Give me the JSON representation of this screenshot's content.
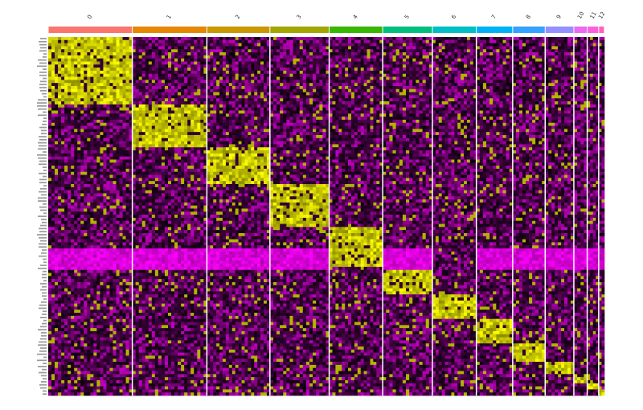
{
  "chart_data": {
    "type": "heatmap",
    "title": "",
    "xlabel": "",
    "ylabel": "",
    "clusters": [
      {
        "label": "0",
        "color": "#F8766D",
        "cells": 88
      },
      {
        "label": "1",
        "color": "#E58700",
        "cells": 78
      },
      {
        "label": "2",
        "color": "#C99800",
        "cells": 66
      },
      {
        "label": "3",
        "color": "#A3A500",
        "cells": 62
      },
      {
        "label": "4",
        "color": "#39B600",
        "cells": 56
      },
      {
        "label": "5",
        "color": "#00BF7D",
        "cells": 52
      },
      {
        "label": "6",
        "color": "#00BFC4",
        "cells": 46
      },
      {
        "label": "7",
        "color": "#00B0F6",
        "cells": 38
      },
      {
        "label": "8",
        "color": "#35A2FF",
        "cells": 34
      },
      {
        "label": "9",
        "color": "#9590FF",
        "cells": 30
      },
      {
        "label": "10",
        "color": "#E76BF3",
        "cells": 14
      },
      {
        "label": "11",
        "color": "#FA62DB",
        "cells": 12
      },
      {
        "label": "12",
        "color": "#FF62BC",
        "cells": 6
      }
    ],
    "gene_count": 117,
    "color_scale": {
      "low": "#FF00FF",
      "mid": "#000000",
      "high": "#FFFF00"
    },
    "legend": "none",
    "grid": false
  }
}
